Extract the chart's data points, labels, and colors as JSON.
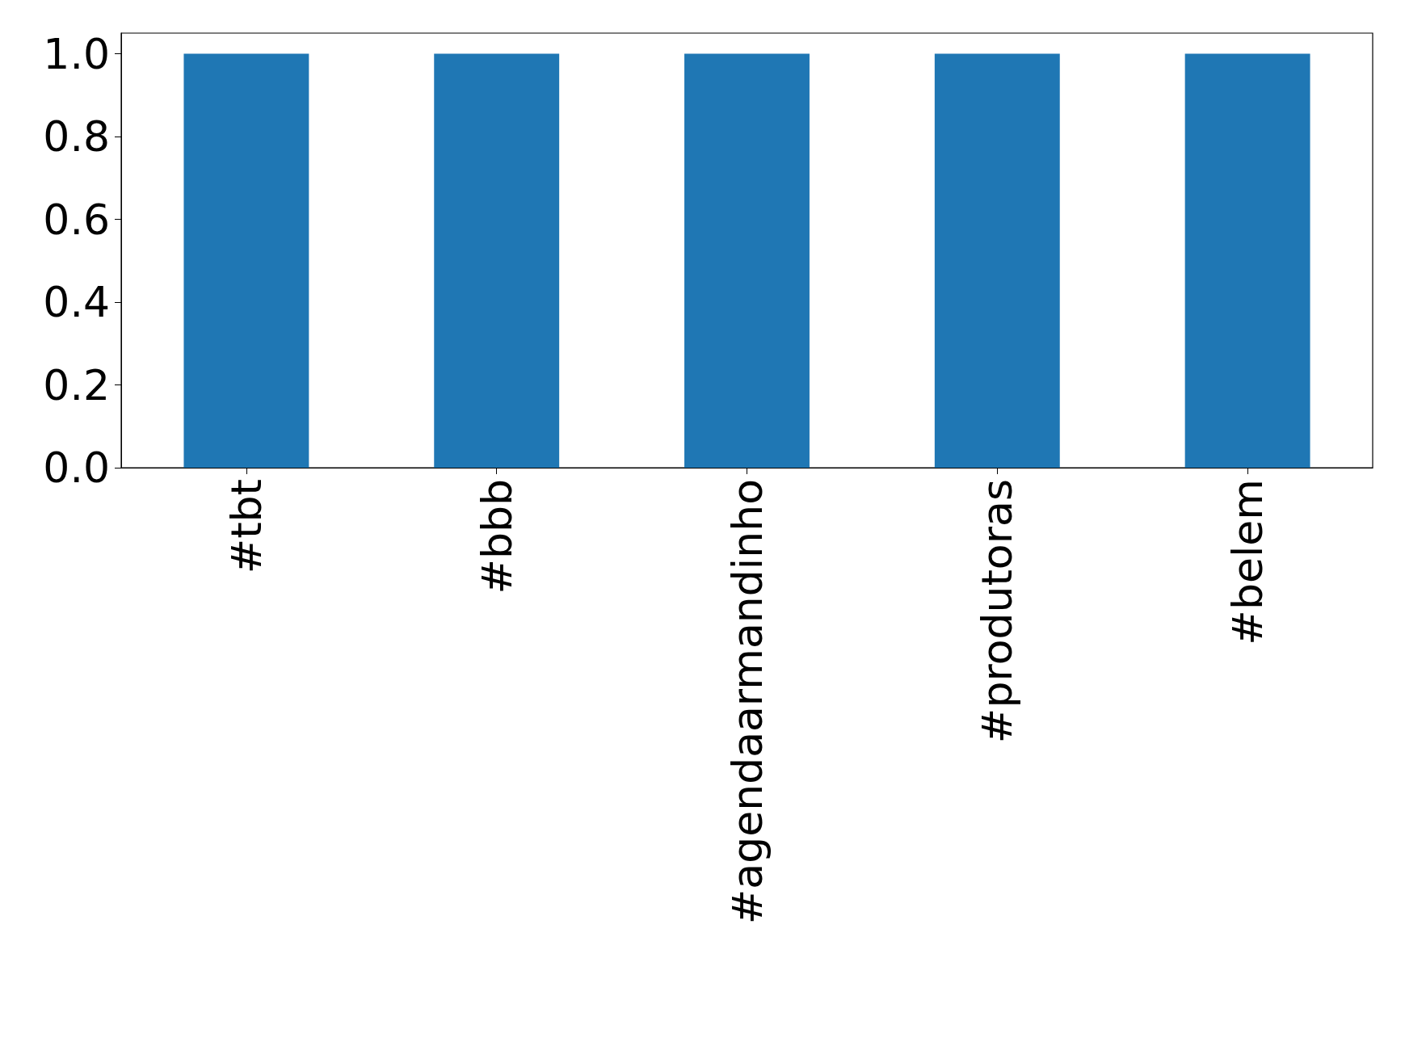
{
  "chart_data": {
    "type": "bar",
    "categories": [
      "#tbt",
      "#bbb",
      "#agendaarmandinho",
      "#produtoras",
      "#belem"
    ],
    "values": [
      1,
      1,
      1,
      1,
      1
    ],
    "color": "#1f77b4",
    "ylim": [
      0,
      1.05
    ],
    "yticks": [
      {
        "value": 0,
        "label": "0.0"
      },
      0.2,
      0.4,
      0.6,
      0.8,
      {
        "value": 1,
        "label": "1.0"
      }
    ],
    "grid": false
  }
}
